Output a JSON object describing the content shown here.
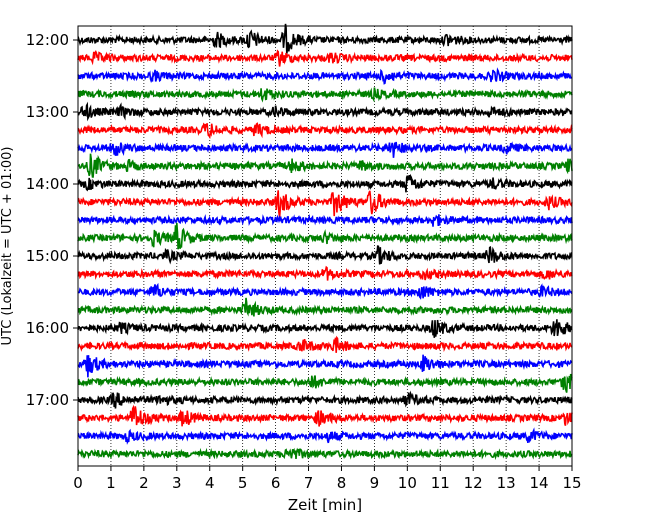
{
  "chart_data": {
    "type": "line",
    "title": "",
    "xlabel": "Zeit  [min]",
    "ylabel": "UTC (Lokalzeit = UTC + 01:00)",
    "xlim": [
      0,
      15
    ],
    "x_ticks": [
      "0",
      "1",
      "2",
      "3",
      "4",
      "5",
      "6",
      "7",
      "8",
      "9",
      "10",
      "11",
      "12",
      "13",
      "14",
      "15"
    ],
    "y_ticks": [
      "12:00",
      "13:00",
      "14:00",
      "15:00",
      "16:00",
      "17:00"
    ],
    "grid": "vertical dotted at each minute",
    "trace_colors": [
      "#000000",
      "#ff0000",
      "#0000ff",
      "#008000"
    ],
    "traces": [
      {
        "start": "12:00",
        "color": "#000000",
        "events": [
          [
            4.2,
            0.5
          ],
          [
            5.2,
            0.7
          ],
          [
            6.3,
            1.0
          ],
          [
            11.2,
            0.4
          ]
        ]
      },
      {
        "start": "12:15",
        "color": "#ff0000",
        "events": [
          [
            0.5,
            0.3
          ],
          [
            6.1,
            0.5
          ],
          [
            7.7,
            0.3
          ]
        ]
      },
      {
        "start": "12:30",
        "color": "#0000ff",
        "events": [
          [
            2.3,
            0.3
          ],
          [
            9.3,
            0.5
          ],
          [
            12.6,
            0.4
          ]
        ]
      },
      {
        "start": "12:45",
        "color": "#008000",
        "events": [
          [
            5.6,
            0.4
          ],
          [
            9.0,
            0.25
          ]
        ]
      },
      {
        "start": "13:00",
        "color": "#000000",
        "events": [
          [
            0.2,
            0.5
          ],
          [
            1.3,
            0.3
          ],
          [
            6.0,
            0.3
          ],
          [
            12.5,
            0.3
          ]
        ]
      },
      {
        "start": "13:15",
        "color": "#ff0000",
        "events": [
          [
            3.9,
            0.5
          ],
          [
            5.4,
            0.4
          ]
        ]
      },
      {
        "start": "13:30",
        "color": "#0000ff",
        "events": [
          [
            1.1,
            0.5
          ],
          [
            9.5,
            0.7
          ],
          [
            13.0,
            0.3
          ]
        ]
      },
      {
        "start": "13:45",
        "color": "#008000",
        "events": [
          [
            0.4,
            0.9
          ],
          [
            1.5,
            0.3
          ],
          [
            6.5,
            0.4
          ],
          [
            8.6,
            0.3
          ],
          [
            14.9,
            0.4
          ]
        ]
      },
      {
        "start": "14:00",
        "color": "#000000",
        "events": [
          [
            0.3,
            0.3
          ],
          [
            10.0,
            0.7
          ],
          [
            12.6,
            0.3
          ]
        ]
      },
      {
        "start": "14:15",
        "color": "#ff0000",
        "events": [
          [
            6.1,
            1.0
          ],
          [
            7.8,
            1.0
          ],
          [
            8.9,
            1.0
          ],
          [
            14.3,
            0.4
          ]
        ]
      },
      {
        "start": "14:30",
        "color": "#0000ff",
        "events": [
          [
            10.8,
            0.4
          ]
        ]
      },
      {
        "start": "14:45",
        "color": "#008000",
        "events": [
          [
            2.3,
            0.5
          ],
          [
            3.0,
            1.0
          ],
          [
            7.5,
            0.3
          ]
        ]
      },
      {
        "start": "15:00",
        "color": "#000000",
        "events": [
          [
            2.7,
            0.3
          ],
          [
            9.1,
            0.6
          ],
          [
            12.5,
            0.6
          ]
        ]
      },
      {
        "start": "15:15",
        "color": "#ff0000",
        "events": [
          [
            7.5,
            0.4
          ],
          [
            10.5,
            0.3
          ],
          [
            14.2,
            0.3
          ]
        ]
      },
      {
        "start": "15:30",
        "color": "#0000ff",
        "events": [
          [
            2.3,
            0.5
          ],
          [
            10.4,
            0.5
          ],
          [
            14.1,
            0.3
          ]
        ]
      },
      {
        "start": "15:45",
        "color": "#008000",
        "events": [
          [
            5.1,
            0.7
          ]
        ]
      },
      {
        "start": "16:00",
        "color": "#000000",
        "events": [
          [
            1.3,
            0.3
          ],
          [
            10.8,
            0.7
          ],
          [
            14.5,
            0.8
          ]
        ]
      },
      {
        "start": "16:15",
        "color": "#ff0000",
        "events": [
          [
            6.8,
            0.4
          ],
          [
            7.8,
            0.5
          ]
        ]
      },
      {
        "start": "16:30",
        "color": "#0000ff",
        "events": [
          [
            0.3,
            0.8
          ],
          [
            10.5,
            0.6
          ]
        ]
      },
      {
        "start": "16:45",
        "color": "#008000",
        "events": [
          [
            7.1,
            0.4
          ],
          [
            14.8,
            0.8
          ]
        ]
      },
      {
        "start": "17:00",
        "color": "#000000",
        "events": [
          [
            1.1,
            0.5
          ],
          [
            2.5,
            0.3
          ],
          [
            10.0,
            0.4
          ]
        ]
      },
      {
        "start": "17:15",
        "color": "#ff0000",
        "events": [
          [
            1.7,
            1.0
          ],
          [
            3.2,
            0.6
          ],
          [
            7.3,
            0.5
          ],
          [
            14.8,
            0.4
          ]
        ]
      },
      {
        "start": "17:30",
        "color": "#0000ff",
        "events": [
          [
            1.5,
            0.3
          ],
          [
            7.6,
            0.3
          ],
          [
            13.7,
            0.4
          ]
        ]
      },
      {
        "start": "17:45",
        "color": "#008000",
        "events": [
          [
            6.4,
            0.5
          ]
        ]
      }
    ]
  }
}
